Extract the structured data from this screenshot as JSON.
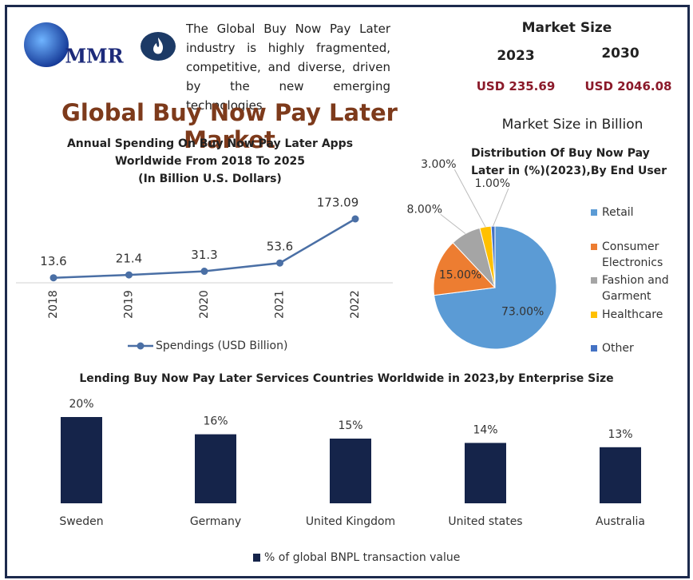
{
  "header": {
    "logo": "MMR",
    "description": "The Global Buy Now Pay Later industry is highly fragmented, competitive, and diverse, driven by the new emerging technologies.",
    "title": "Global Buy Now Pay Later Market"
  },
  "market_size": {
    "title": "Market Size",
    "years": [
      "2023",
      "2030"
    ],
    "values": [
      "USD 235.69",
      "USD 2046.08"
    ],
    "unit": "Market Size in Billion"
  },
  "chart_data": [
    {
      "type": "line",
      "title": [
        "Annual Spending On Buy Now Pay Later Apps",
        "Worldwide  From 2018 To 2025",
        "(In Billion U.S. Dollars)"
      ],
      "categories": [
        "2018",
        "2019",
        "2020",
        "2021",
        "2022"
      ],
      "series": [
        {
          "name": "Spendings (USD Billion)",
          "color": "#4a6fa5",
          "values": [
            13.6,
            21.4,
            31.3,
            53.6,
            173.09
          ]
        }
      ]
    },
    {
      "type": "pie",
      "title": "Distribution Of Buy Now Pay Later in (%)(2023),By End User",
      "categories": [
        "Retail",
        "Consumer Electronics",
        "Fashion and Garment",
        "Healthcare",
        "Other"
      ],
      "values": [
        73,
        15,
        8,
        3,
        1
      ],
      "value_labels": [
        "73.00%",
        "15.00%",
        "8.00%",
        "3.00%",
        "1.00%"
      ],
      "colors": [
        "#5b9bd5",
        "#ed7d31",
        "#a5a5a5",
        "#ffc000",
        "#4472c4"
      ]
    },
    {
      "type": "bar",
      "title": "Lending Buy Now Pay Later Services Countries Worldwide in 2023,by Enterprise Size",
      "categories": [
        "Sweden",
        "Germany",
        "United Kingdom",
        "United states",
        "Australia"
      ],
      "series": [
        {
          "name": "% of global BNPL transaction value",
          "color": "#15244a",
          "values": [
            20,
            16,
            15,
            14,
            13
          ],
          "value_labels": [
            "20%",
            "16%",
            "15%",
            "14%",
            "13%"
          ]
        }
      ]
    }
  ]
}
